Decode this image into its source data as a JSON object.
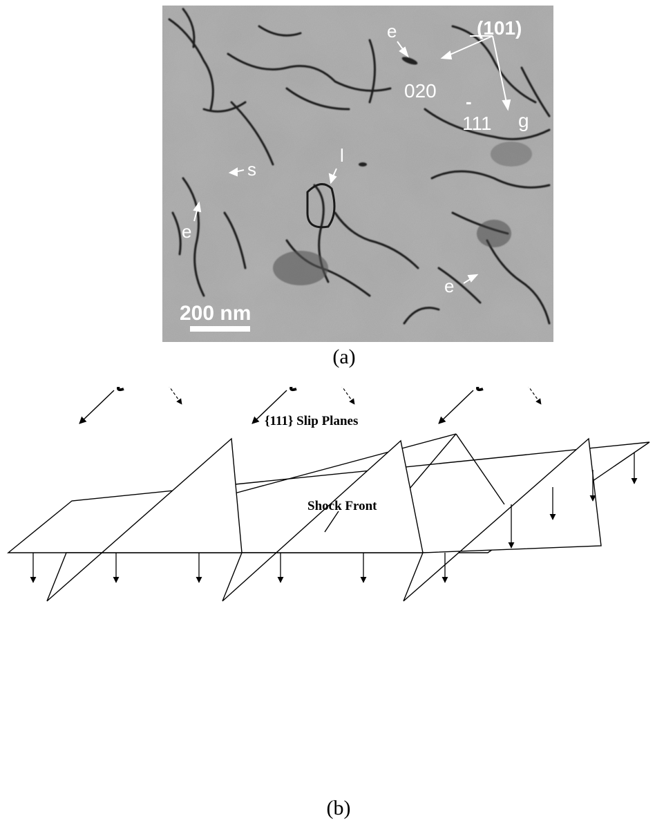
{
  "panel_a": {
    "caption": "(a)",
    "zone_axis": "(101)",
    "g_vectors": [
      "020",
      "111"
    ],
    "g_vectors_overbar": "-",
    "g_label": "g",
    "feature_labels": {
      "edge": "e",
      "screw": "s",
      "loop": "l"
    },
    "scale_bar": "200 nm"
  },
  "panel_b": {
    "caption": "(b)",
    "slip_planes_label": "{111} Slip Planes",
    "shock_front_label": "Shock Front"
  }
}
